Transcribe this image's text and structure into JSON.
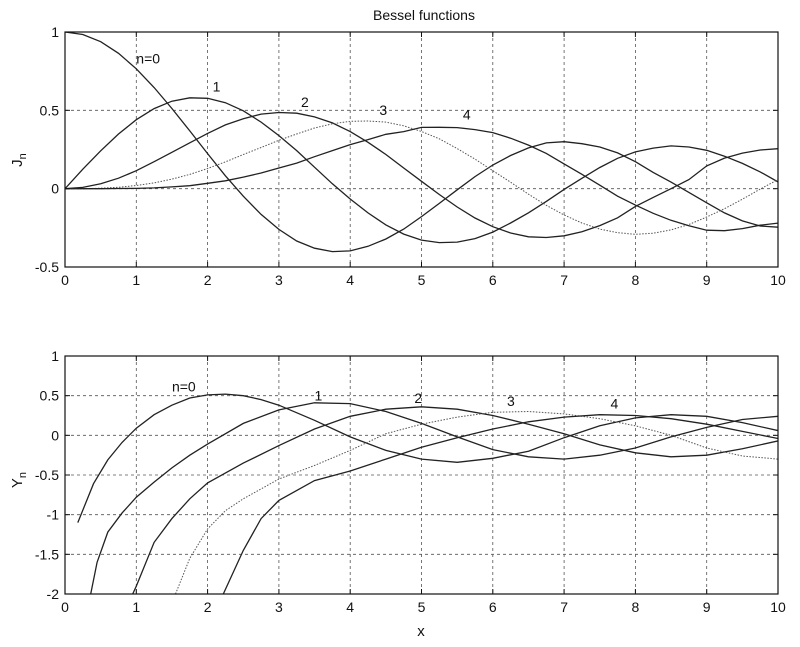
{
  "chart_data": [
    {
      "type": "line",
      "title": "Bessel functions",
      "xlabel": "",
      "ylabel": "J",
      "ylabel_sub": "n",
      "xlim": [
        0,
        10
      ],
      "ylim": [
        -0.5,
        1
      ],
      "xticks": [
        0,
        1,
        2,
        3,
        4,
        5,
        6,
        7,
        8,
        9,
        10
      ],
      "yticks": [
        -0.5,
        0,
        0.5,
        1
      ],
      "ytick_labels": [
        "-0.5",
        "0",
        "0.5",
        "1"
      ],
      "grid": true,
      "x": [
        0,
        0.25,
        0.5,
        0.75,
        1,
        1.25,
        1.5,
        1.75,
        2,
        2.25,
        2.5,
        2.75,
        3,
        3.25,
        3.5,
        3.75,
        4,
        4.25,
        4.5,
        4.75,
        5,
        5.25,
        5.5,
        5.75,
        6,
        6.25,
        6.5,
        6.75,
        7,
        7.25,
        7.5,
        7.75,
        8,
        8.25,
        8.5,
        8.75,
        9,
        9.25,
        9.5,
        9.75,
        10
      ],
      "series": [
        {
          "name": "n=0",
          "label_x": 1.0,
          "label_y": 0.8,
          "values": [
            1.0,
            0.984,
            0.938,
            0.864,
            0.765,
            0.646,
            0.512,
            0.369,
            0.224,
            0.082,
            -0.048,
            -0.164,
            -0.26,
            -0.334,
            -0.38,
            -0.402,
            -0.397,
            -0.368,
            -0.321,
            -0.258,
            -0.178,
            -0.094,
            -0.007,
            0.077,
            0.151,
            0.212,
            0.26,
            0.292,
            0.3,
            0.287,
            0.266,
            0.228,
            0.172,
            0.104,
            0.042,
            -0.024,
            -0.09,
            -0.155,
            -0.206,
            -0.238,
            -0.246
          ]
        },
        {
          "name": "1",
          "label_x": 2.07,
          "label_y": 0.62,
          "values": [
            0.0,
            0.124,
            0.242,
            0.349,
            0.44,
            0.511,
            0.558,
            0.58,
            0.577,
            0.549,
            0.497,
            0.425,
            0.339,
            0.243,
            0.137,
            0.031,
            -0.066,
            -0.155,
            -0.231,
            -0.29,
            -0.328,
            -0.344,
            -0.341,
            -0.319,
            -0.277,
            -0.219,
            -0.154,
            -0.081,
            -0.005,
            0.066,
            0.135,
            0.194,
            0.235,
            0.259,
            0.273,
            0.266,
            0.245,
            0.207,
            0.161,
            0.107,
            0.043
          ]
        },
        {
          "name": "2",
          "label_x": 3.31,
          "label_y": 0.52,
          "values": [
            0.0,
            0.008,
            0.031,
            0.067,
            0.115,
            0.172,
            0.232,
            0.293,
            0.353,
            0.407,
            0.446,
            0.476,
            0.486,
            0.482,
            0.458,
            0.42,
            0.364,
            0.296,
            0.218,
            0.132,
            0.047,
            -0.037,
            -0.117,
            -0.187,
            -0.243,
            -0.283,
            -0.307,
            -0.312,
            -0.301,
            -0.275,
            -0.236,
            -0.186,
            -0.113,
            -0.056,
            0.0,
            0.058,
            0.145,
            0.195,
            0.227,
            0.247,
            0.255
          ]
        },
        {
          "name": "3",
          "label_x": 4.41,
          "label_y": 0.47,
          "values": [
            0.0,
            0.0,
            0.003,
            0.009,
            0.02,
            0.037,
            0.061,
            0.091,
            0.129,
            0.171,
            0.218,
            0.263,
            0.309,
            0.349,
            0.387,
            0.414,
            0.43,
            0.432,
            0.425,
            0.401,
            0.365,
            0.318,
            0.256,
            0.189,
            0.115,
            0.041,
            -0.035,
            -0.106,
            -0.168,
            -0.219,
            -0.258,
            -0.281,
            -0.291,
            -0.284,
            -0.263,
            -0.229,
            -0.181,
            -0.128,
            -0.067,
            -0.003,
            0.058
          ]
        },
        {
          "name": "4",
          "label_x": 5.58,
          "label_y": 0.44,
          "values": [
            0.0,
            0.0,
            0.0,
            0.001,
            0.002,
            0.005,
            0.011,
            0.019,
            0.034,
            0.05,
            0.074,
            0.1,
            0.132,
            0.163,
            0.204,
            0.243,
            0.281,
            0.313,
            0.347,
            0.364,
            0.391,
            0.392,
            0.39,
            0.377,
            0.358,
            0.322,
            0.278,
            0.225,
            0.158,
            0.092,
            0.022,
            -0.048,
            -0.105,
            -0.157,
            -0.202,
            -0.237,
            -0.265,
            -0.268,
            -0.255,
            -0.233,
            -0.22
          ]
        }
      ]
    },
    {
      "type": "line",
      "title": "",
      "xlabel": "x",
      "ylabel": "Y",
      "ylabel_sub": "n",
      "xlim": [
        0,
        10
      ],
      "ylim": [
        -2,
        1
      ],
      "xticks": [
        0,
        1,
        2,
        3,
        4,
        5,
        6,
        7,
        8,
        9,
        10
      ],
      "yticks": [
        -2,
        -1.5,
        -1,
        -0.5,
        0,
        0.5,
        1
      ],
      "ytick_labels": [
        "-2",
        "-1.5",
        "-1",
        "-0.5",
        "0",
        "0.5",
        "1"
      ],
      "grid": true,
      "series": [
        {
          "name": "n=0",
          "label_x": 1.5,
          "label_y": 0.55,
          "x": [
            0.18,
            0.4,
            0.6,
            0.8,
            1.0,
            1.25,
            1.5,
            1.75,
            2.0,
            2.25,
            2.5,
            2.75,
            3.0,
            3.5,
            4.0,
            4.5,
            5.0,
            5.5,
            6.0,
            6.5,
            7.0,
            7.5,
            8.0,
            8.5,
            9.0,
            9.5,
            10.0
          ],
          "values": [
            -1.1,
            -0.61,
            -0.31,
            -0.09,
            0.09,
            0.26,
            0.38,
            0.47,
            0.51,
            0.52,
            0.5,
            0.45,
            0.38,
            0.19,
            -0.02,
            -0.19,
            -0.3,
            -0.34,
            -0.29,
            -0.2,
            -0.03,
            0.12,
            0.22,
            0.26,
            0.24,
            0.16,
            0.06
          ]
        },
        {
          "name": "1",
          "label_x": 3.5,
          "label_y": 0.44,
          "x": [
            0.36,
            0.45,
            0.6,
            0.8,
            1.0,
            1.25,
            1.5,
            1.75,
            2.0,
            2.5,
            3.0,
            3.5,
            4.0,
            4.5,
            5.0,
            5.5,
            6.0,
            6.5,
            7.0,
            7.5,
            8.0,
            8.5,
            9.0,
            9.5,
            10.0
          ],
          "values": [
            -2.0,
            -1.6,
            -1.22,
            -0.98,
            -0.78,
            -0.59,
            -0.41,
            -0.25,
            -0.11,
            0.15,
            0.32,
            0.41,
            0.4,
            0.3,
            0.15,
            -0.02,
            -0.18,
            -0.27,
            -0.3,
            -0.25,
            -0.16,
            -0.02,
            0.1,
            0.2,
            0.24
          ]
        },
        {
          "name": "2",
          "label_x": 4.9,
          "label_y": 0.41,
          "x": [
            0.95,
            1.0,
            1.25,
            1.5,
            1.75,
            2.0,
            2.5,
            3.0,
            3.5,
            4.0,
            4.5,
            5.0,
            5.5,
            6.0,
            6.5,
            7.0,
            7.5,
            8.0,
            8.5,
            9.0,
            9.5,
            10.0
          ],
          "values": [
            -2.0,
            -1.9,
            -1.35,
            -1.05,
            -0.8,
            -0.6,
            -0.35,
            -0.13,
            0.08,
            0.24,
            0.33,
            0.36,
            0.33,
            0.25,
            0.14,
            0.02,
            -0.12,
            -0.22,
            -0.27,
            -0.25,
            -0.17,
            -0.07
          ]
        },
        {
          "name": "3",
          "label_x": 6.2,
          "label_y": 0.37,
          "x": [
            1.55,
            1.75,
            2.0,
            2.25,
            2.5,
            3.0,
            3.5,
            4.0,
            4.5,
            5.0,
            5.5,
            6.0,
            6.5,
            7.0,
            7.5,
            8.0,
            8.5,
            9.0,
            9.5,
            10.0
          ],
          "values": [
            -2.0,
            -1.55,
            -1.18,
            -0.95,
            -0.8,
            -0.55,
            -0.38,
            -0.19,
            0.02,
            0.14,
            0.23,
            0.29,
            0.3,
            0.27,
            0.21,
            0.12,
            0.0,
            -0.16,
            -0.26,
            -0.3
          ]
        },
        {
          "name": "4",
          "label_x": 7.65,
          "label_y": 0.34,
          "x": [
            2.22,
            2.5,
            2.75,
            3.0,
            3.5,
            4.0,
            4.5,
            5.0,
            5.5,
            6.0,
            6.5,
            7.0,
            7.5,
            8.0,
            8.5,
            9.0,
            9.5,
            10.0
          ],
          "values": [
            -2.0,
            -1.45,
            -1.05,
            -0.82,
            -0.57,
            -0.45,
            -0.3,
            -0.15,
            -0.03,
            0.08,
            0.17,
            0.23,
            0.26,
            0.25,
            0.21,
            0.14,
            0.05,
            -0.04
          ]
        }
      ]
    }
  ]
}
